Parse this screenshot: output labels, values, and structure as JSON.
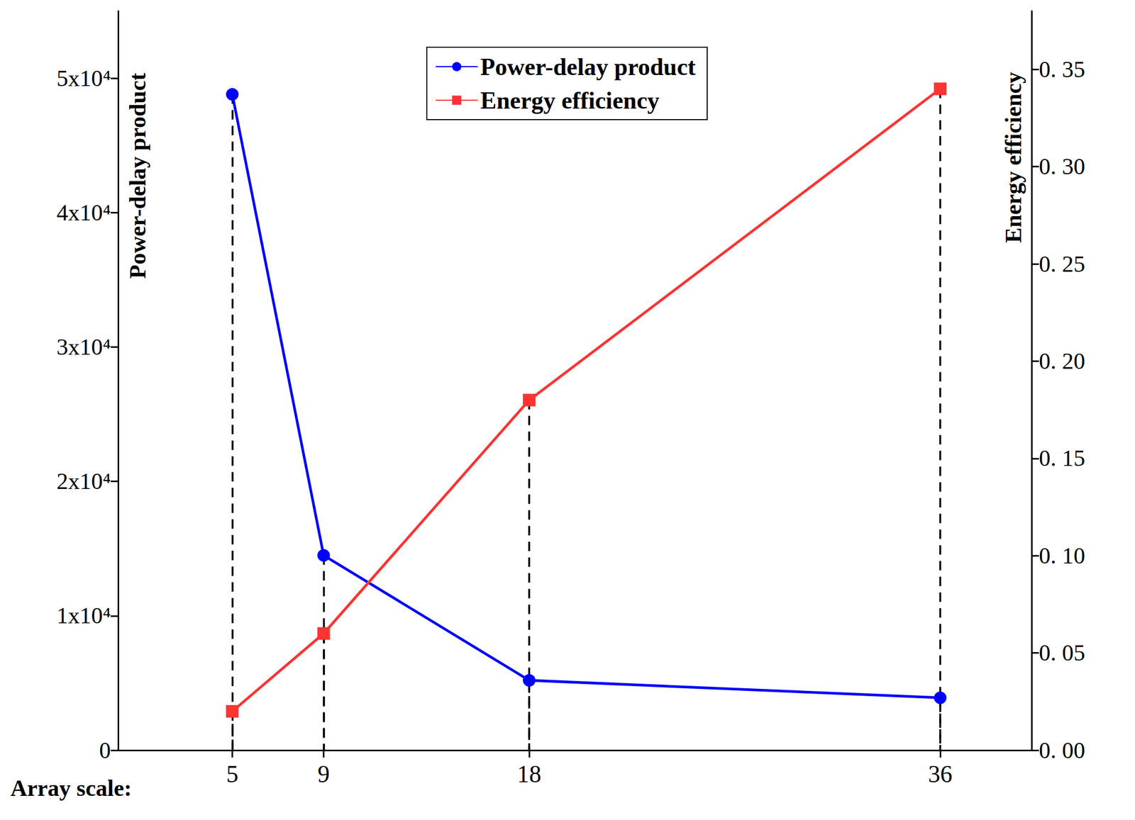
{
  "chart_data": {
    "type": "line",
    "x_label": "Array scale:",
    "y_label": "Power-delay product",
    "y2_label": "Energy efficiency",
    "x": [
      5,
      9,
      18,
      36
    ],
    "xlim": [
      0,
      40
    ],
    "xticks": [
      5,
      9,
      18,
      36
    ],
    "ylim": [
      0,
      55000
    ],
    "yticks": [
      0,
      {
        "value": 10000,
        "label": "1x10⁴"
      },
      {
        "value": 20000,
        "label": "2x10⁴"
      },
      {
        "value": 30000,
        "label": "3x10⁴"
      },
      {
        "value": 40000,
        "label": "4x10⁴"
      },
      {
        "value": 50000,
        "label": "5x10⁴"
      }
    ],
    "y2lim": [
      0,
      0.38
    ],
    "y2ticks": [
      {
        "value": 0,
        "label": "0. 00"
      },
      {
        "value": 0.05,
        "label": "0. 05"
      },
      {
        "value": 0.1,
        "label": "0. 10"
      },
      {
        "value": 0.15,
        "label": "0. 15"
      },
      {
        "value": 0.2,
        "label": "0. 20"
      },
      {
        "value": 0.25,
        "label": "0. 25"
      },
      {
        "value": 0.3,
        "label": "0. 30"
      },
      {
        "value": 0.35,
        "label": "0. 35"
      }
    ],
    "series": [
      {
        "name": "Power-delay product",
        "color": "#0000ff",
        "marker": "circle",
        "line_style": "solid",
        "values": [
          48800,
          14500,
          5200,
          3900
        ]
      },
      {
        "name": "Energy efficiency",
        "color": "#ff3333",
        "marker": "square",
        "line_style": "solid",
        "axis": "y2",
        "values": [
          0.02,
          0.06,
          0.18,
          0.34
        ]
      }
    ],
    "legend": "top",
    "grid": false
  }
}
